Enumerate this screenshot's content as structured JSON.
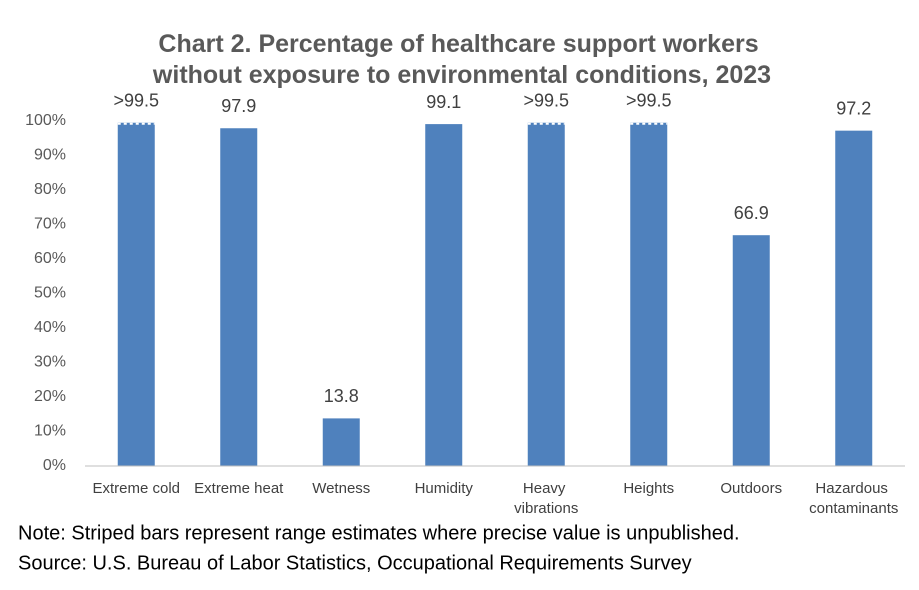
{
  "chart_data": {
    "type": "bar",
    "title": "Chart 2. Percentage of healthcare support workers without exposure to environmental conditions, 2023",
    "categories": [
      "Extreme cold",
      "Extreme heat",
      "Wetness",
      "Humidity",
      "Heavy vibrations",
      "Heights",
      "Outdoors",
      "Hazardous contaminants"
    ],
    "values": [
      99.5,
      97.9,
      13.8,
      99.1,
      99.5,
      99.5,
      66.9,
      97.2
    ],
    "value_labels": [
      ">99.5",
      "97.9",
      "13.8",
      "99.1",
      ">99.5",
      ">99.5",
      "66.9",
      "97.2"
    ],
    "color": "#4f81bd",
    "ylim": [
      0,
      100
    ],
    "yticks": [
      {
        "value": 0,
        "label": "0%"
      },
      {
        "value": 10,
        "label": "10%"
      },
      {
        "value": 20,
        "label": "20%"
      },
      {
        "value": 30,
        "label": "30%"
      },
      {
        "value": 40,
        "label": "40%"
      },
      {
        "value": 50,
        "label": "50%"
      },
      {
        "value": 60,
        "label": "60%"
      },
      {
        "value": 70,
        "label": "70%"
      },
      {
        "value": 80,
        "label": "80%"
      },
      {
        "value": 90,
        "label": "90%"
      },
      {
        "value": 100,
        "label": "100%"
      }
    ],
    "grid": false,
    "notes": [
      "Note: Striped bars represent range estimates where precise value is unpublished.",
      "Source: U.S. Bureau of Labor Statistics, Occupational Requirements Survey"
    ]
  }
}
